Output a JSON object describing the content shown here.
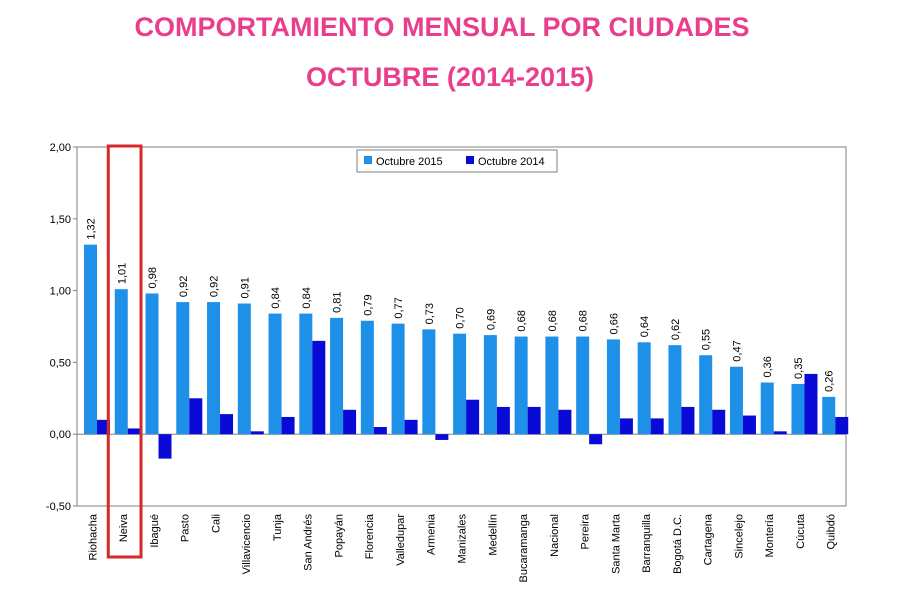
{
  "title": "COMPORTAMIENTO MENSUAL POR CIUDADES",
  "subtitle": "OCTUBRE (2014-2015)",
  "colors": {
    "title": "#e83e8c",
    "series_2015": "#1e90e8",
    "series_2014": "#0a0ad6",
    "highlight": "#d42a2a"
  },
  "highlight_category": "Neiva",
  "chart_data": {
    "type": "bar",
    "title": "COMPORTAMIENTO MENSUAL POR CIUDADES",
    "subtitle": "OCTUBRE (2014-2015)",
    "xlabel": "",
    "ylabel": "",
    "ylim": [
      -0.5,
      2.0
    ],
    "yticks": [
      "-0,50",
      "0,00",
      "0,50",
      "1,00",
      "1,50",
      "2,00"
    ],
    "ytick_values": [
      -0.5,
      0,
      0.5,
      1.0,
      1.5,
      2.0
    ],
    "grid": false,
    "legend": "top-center",
    "categories": [
      "Riohacha",
      "Neiva",
      "Ibagué",
      "Pasto",
      "Cali",
      "Villavicencio",
      "Tunja",
      "San Andrés",
      "Popayán",
      "Florencia",
      "Valledupar",
      "Armenia",
      "Manizales",
      "Medellín",
      "Bucaramanga",
      "Nacional",
      "Pereira",
      "Santa Marta",
      "Barranquilla",
      "Bogotá D.C.",
      "Cartagena",
      "Sincelejo",
      "Montería",
      "Cúcuta",
      "Quibdó"
    ],
    "series": [
      {
        "name": "Octubre 2015",
        "values": [
          1.32,
          1.01,
          0.98,
          0.92,
          0.92,
          0.91,
          0.84,
          0.84,
          0.81,
          0.79,
          0.77,
          0.73,
          0.7,
          0.69,
          0.68,
          0.68,
          0.68,
          0.66,
          0.64,
          0.62,
          0.55,
          0.47,
          0.36,
          0.35,
          0.26
        ],
        "labels": [
          "1,32",
          "1,01",
          "0,98",
          "0,92",
          "0,92",
          "0,91",
          "0,84",
          "0,84",
          "0,81",
          "0,79",
          "0,77",
          "0,73",
          "0,70",
          "0,69",
          "0,68",
          "0,68",
          "0,68",
          "0,66",
          "0,64",
          "0,62",
          "0,55",
          "0,47",
          "0,36",
          "0,35",
          "0,26"
        ]
      },
      {
        "name": "Octubre 2014",
        "values": [
          0.1,
          0.04,
          -0.17,
          0.25,
          0.14,
          0.02,
          0.12,
          0.65,
          0.17,
          0.05,
          0.1,
          -0.04,
          0.24,
          0.19,
          0.19,
          0.17,
          -0.07,
          0.11,
          0.11,
          0.19,
          0.17,
          0.13,
          0.02,
          0.42,
          0.12
        ]
      }
    ]
  }
}
